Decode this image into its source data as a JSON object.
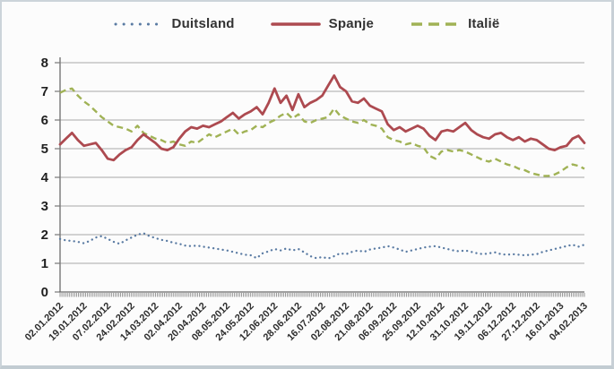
{
  "chart_data": {
    "type": "line",
    "title": "",
    "legend_position": "top",
    "grid": "horizontal",
    "x_axis": {
      "labels": [
        "02.01.2012",
        "19.01.2012",
        "07.02.2012",
        "24.02.2012",
        "14.03.2012",
        "02.04.2012",
        "20.04.2012",
        "08.05.2012",
        "24.05.2012",
        "12.06.2012",
        "28.06.2012",
        "16.07.2012",
        "02.08.2012",
        "21.08.2012",
        "06.09.2012",
        "25.09.2012",
        "12.10.2012",
        "31.10.2012",
        "19.11.2012",
        "06.12.2012",
        "27.12.2012",
        "16.01.2013",
        "04.02.2013"
      ],
      "label_rotation_deg": 45,
      "minor_tick_count": 287
    },
    "y_axis": {
      "min": 0,
      "max": 8,
      "ticks": [
        0,
        1,
        2,
        3,
        4,
        5,
        6,
        7,
        8
      ]
    },
    "series": [
      {
        "name": "Duitsland",
        "color": "#5a7ba3",
        "line_style": "dotted",
        "values": [
          1.85,
          1.8,
          1.78,
          1.75,
          1.7,
          1.78,
          1.9,
          1.95,
          1.85,
          1.75,
          1.68,
          1.8,
          1.9,
          2.0,
          2.05,
          1.95,
          1.88,
          1.82,
          1.78,
          1.72,
          1.68,
          1.62,
          1.6,
          1.62,
          1.58,
          1.55,
          1.52,
          1.48,
          1.45,
          1.4,
          1.35,
          1.3,
          1.28,
          1.18,
          1.35,
          1.42,
          1.5,
          1.45,
          1.52,
          1.45,
          1.5,
          1.38,
          1.25,
          1.18,
          1.22,
          1.17,
          1.25,
          1.35,
          1.32,
          1.4,
          1.45,
          1.4,
          1.48,
          1.52,
          1.55,
          1.6,
          1.55,
          1.48,
          1.4,
          1.45,
          1.5,
          1.55,
          1.58,
          1.6,
          1.55,
          1.5,
          1.45,
          1.42,
          1.45,
          1.4,
          1.35,
          1.32,
          1.35,
          1.38,
          1.32,
          1.3,
          1.32,
          1.3,
          1.28,
          1.3,
          1.32,
          1.4,
          1.45,
          1.5,
          1.55,
          1.6,
          1.65,
          1.58,
          1.65
        ]
      },
      {
        "name": "Spanje",
        "color": "#ad4a50",
        "line_style": "solid",
        "values": [
          5.15,
          5.35,
          5.55,
          5.3,
          5.1,
          5.15,
          5.2,
          4.95,
          4.65,
          4.6,
          4.8,
          4.95,
          5.05,
          5.3,
          5.5,
          5.35,
          5.2,
          5.0,
          4.95,
          5.05,
          5.35,
          5.6,
          5.75,
          5.7,
          5.8,
          5.75,
          5.85,
          5.95,
          6.1,
          6.25,
          6.05,
          6.2,
          6.3,
          6.45,
          6.2,
          6.6,
          7.1,
          6.6,
          6.85,
          6.35,
          6.9,
          6.45,
          6.6,
          6.7,
          6.85,
          7.2,
          7.55,
          7.15,
          7.0,
          6.65,
          6.6,
          6.75,
          6.5,
          6.4,
          6.3,
          5.85,
          5.65,
          5.75,
          5.6,
          5.7,
          5.8,
          5.7,
          5.45,
          5.3,
          5.6,
          5.65,
          5.6,
          5.75,
          5.9,
          5.65,
          5.5,
          5.4,
          5.35,
          5.5,
          5.55,
          5.4,
          5.3,
          5.4,
          5.25,
          5.35,
          5.3,
          5.15,
          5.0,
          4.95,
          5.05,
          5.1,
          5.35,
          5.45,
          5.2
        ]
      },
      {
        "name": "Italië",
        "color": "#a0b255",
        "line_style": "dashed",
        "values": [
          6.95,
          7.05,
          7.1,
          6.85,
          6.65,
          6.5,
          6.3,
          6.1,
          5.95,
          5.8,
          5.75,
          5.7,
          5.6,
          5.8,
          5.55,
          5.45,
          5.35,
          5.3,
          5.2,
          5.25,
          5.15,
          5.1,
          5.25,
          5.2,
          5.35,
          5.5,
          5.4,
          5.5,
          5.6,
          5.7,
          5.5,
          5.6,
          5.65,
          5.8,
          5.75,
          5.9,
          6.0,
          6.15,
          6.25,
          6.05,
          6.2,
          5.95,
          5.9,
          6.0,
          6.05,
          6.1,
          6.4,
          6.15,
          6.05,
          5.95,
          5.9,
          6.0,
          5.85,
          5.8,
          5.7,
          5.4,
          5.3,
          5.25,
          5.15,
          5.2,
          5.1,
          5.05,
          4.75,
          4.65,
          4.9,
          4.95,
          4.9,
          4.95,
          4.9,
          4.8,
          4.7,
          4.6,
          4.55,
          4.65,
          4.55,
          4.45,
          4.4,
          4.3,
          4.25,
          4.15,
          4.1,
          4.05,
          4.05,
          4.1,
          4.2,
          4.35,
          4.45,
          4.4,
          4.3
        ]
      }
    ]
  },
  "colors": {
    "gridline": "#a8a8a8",
    "axis": "#777777",
    "tick": "#555555",
    "frame_border": "#ccd4da",
    "background": "#fcfcfc"
  }
}
